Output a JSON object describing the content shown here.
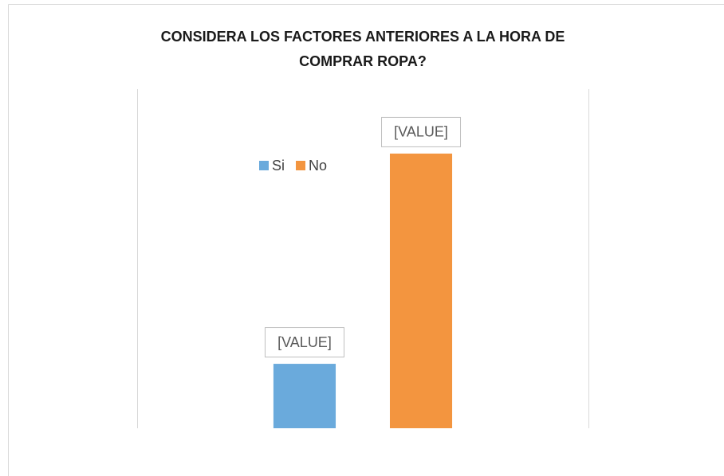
{
  "chart_data": {
    "type": "bar",
    "title": [
      "CONSIDERA LOS FACTORES ANTERIORES A LA HORA DE",
      "COMPRAR ROPA?"
    ],
    "categories": [
      null
    ],
    "series": [
      {
        "name": "Si",
        "color": "#6aaadc",
        "values": [
          19
        ],
        "value_labels": [
          "[VALUE]"
        ]
      },
      {
        "name": "No",
        "color": "#f3953f",
        "values": [
          81
        ],
        "value_labels": [
          "[VALUE]"
        ]
      }
    ],
    "ylim": [
      0,
      100
    ],
    "legend": "top-left"
  }
}
